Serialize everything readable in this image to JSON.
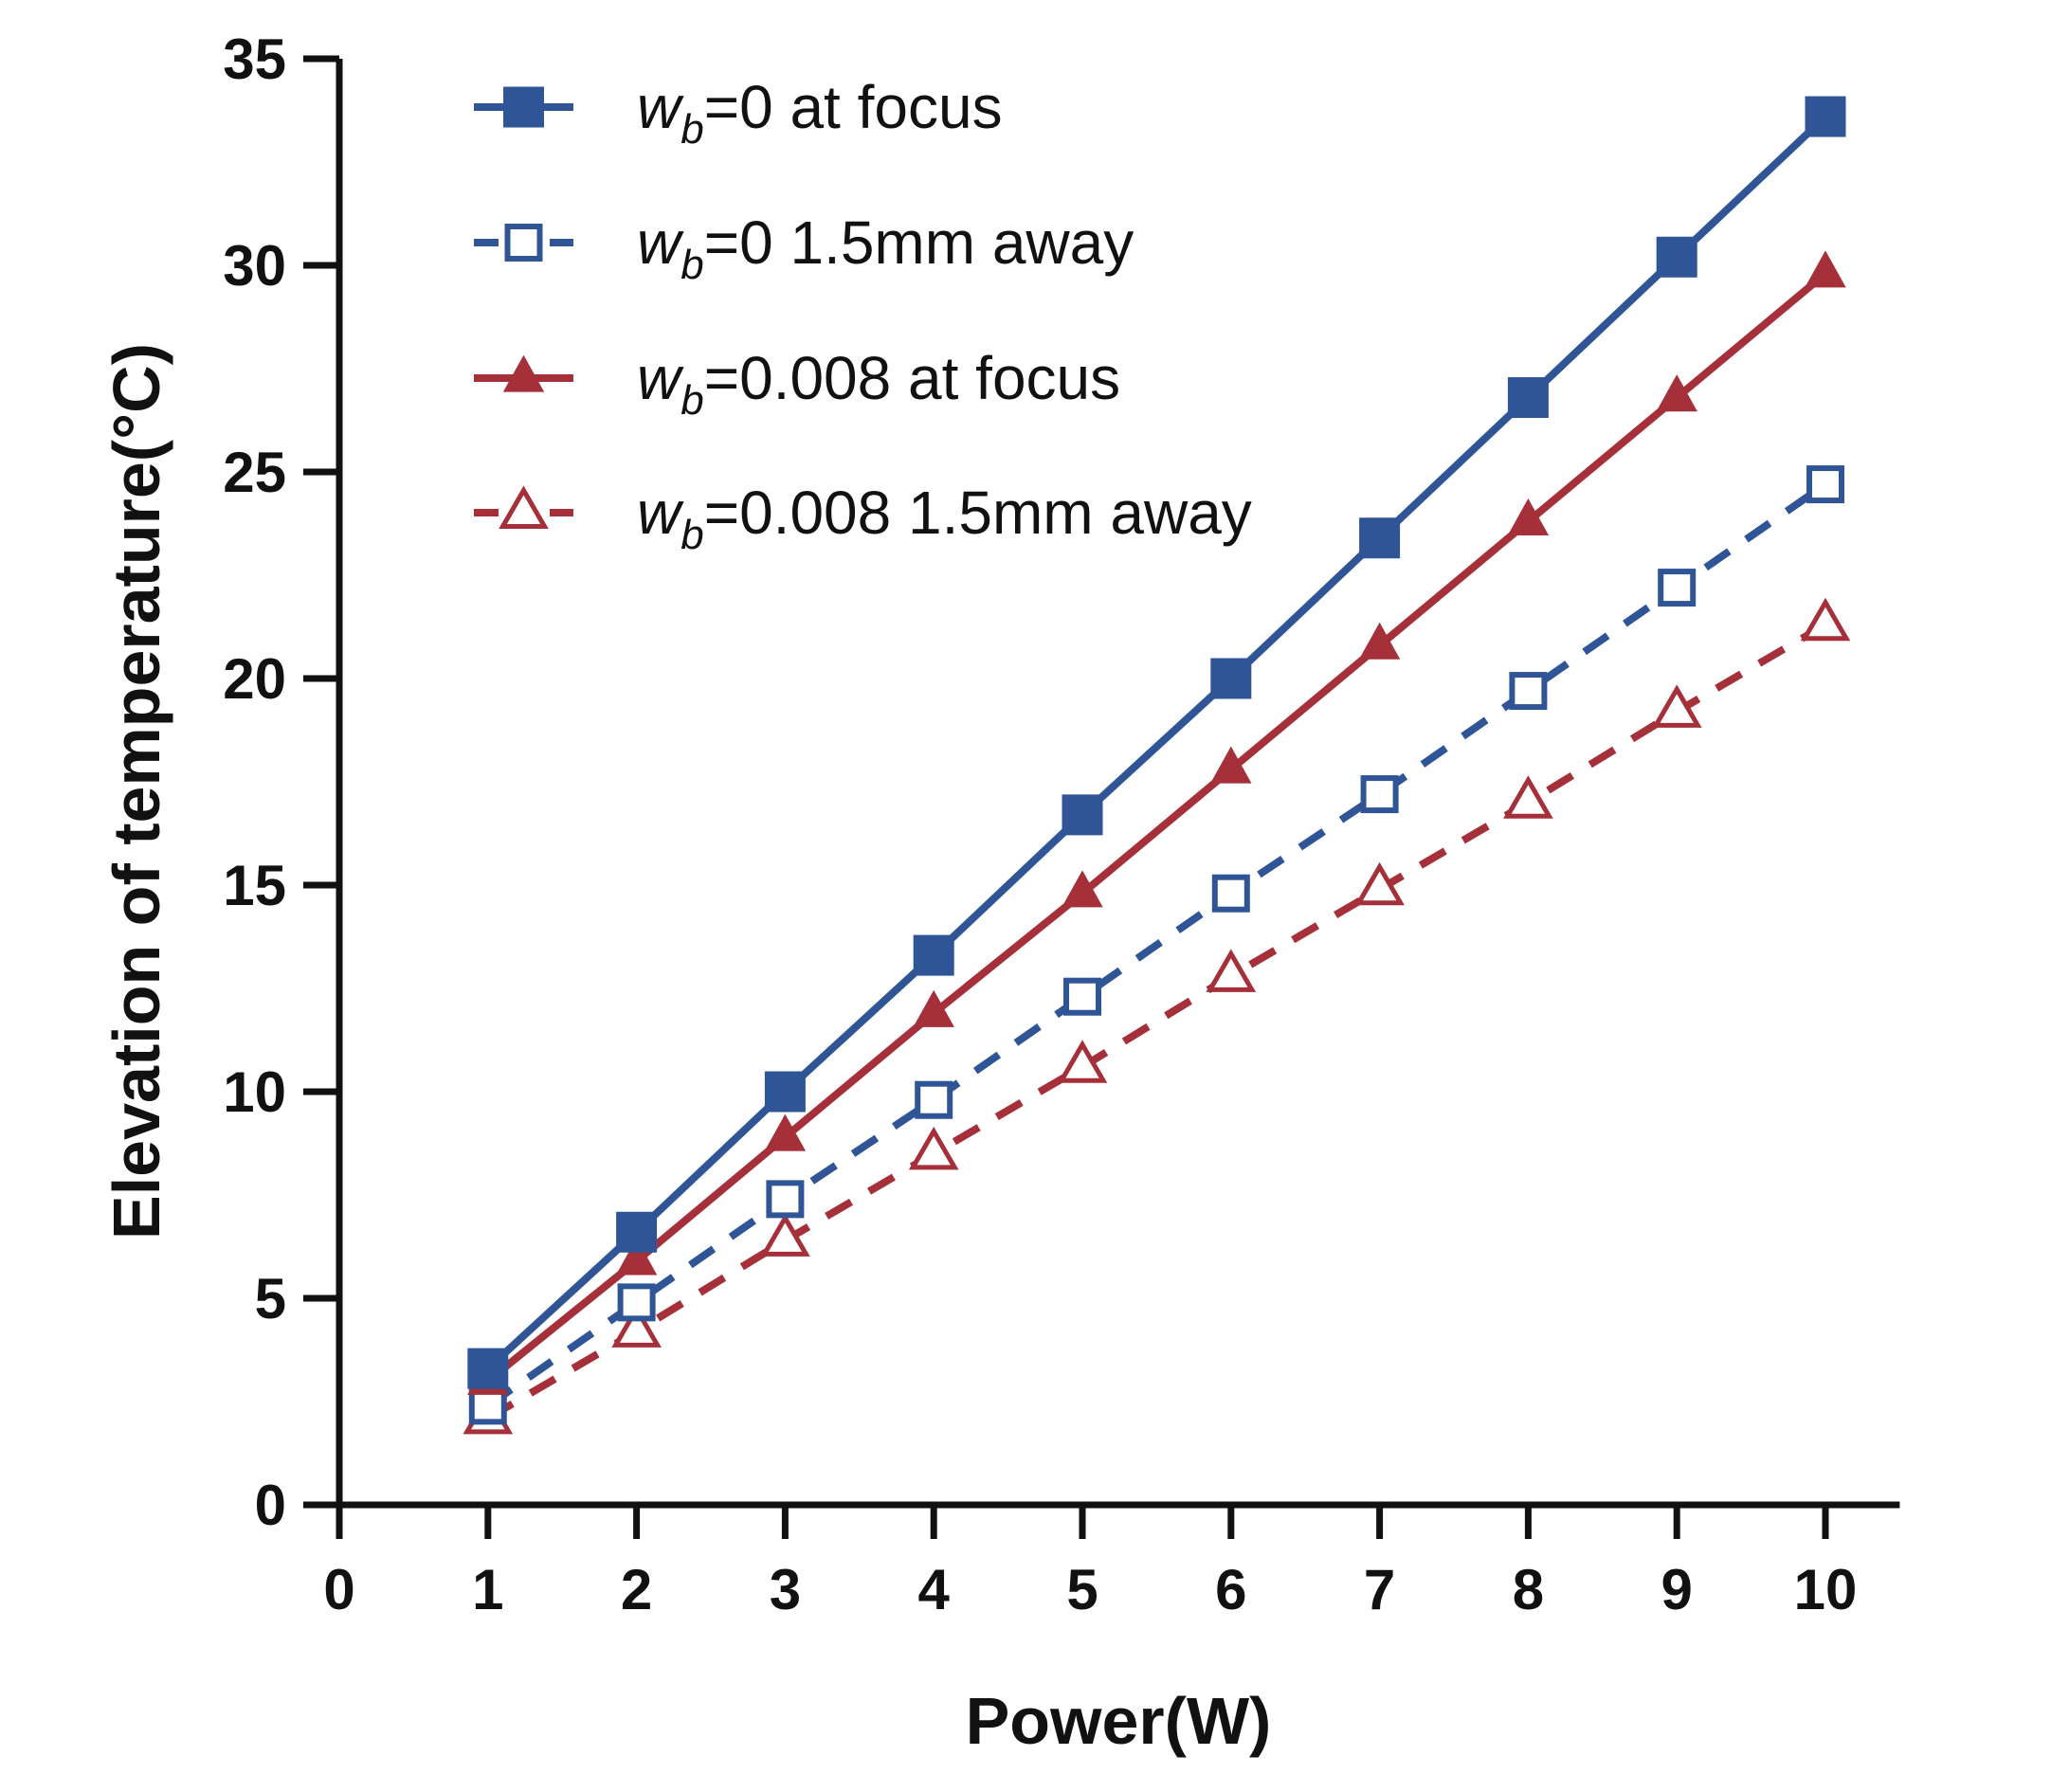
{
  "chart_data": {
    "type": "line",
    "title": "",
    "xlabel": "Power(W)",
    "ylabel": "Elevation of temperature(°C)",
    "xlim": [
      0,
      10.5
    ],
    "ylim": [
      0,
      35
    ],
    "xticks": [
      0,
      1,
      2,
      3,
      4,
      5,
      6,
      7,
      8,
      9,
      10
    ],
    "yticks": [
      0,
      5,
      10,
      15,
      20,
      25,
      30,
      35
    ],
    "grid": false,
    "legend_position": "top-left",
    "x": [
      1,
      2,
      3,
      4,
      5,
      6,
      7,
      8,
      9,
      10
    ],
    "series": [
      {
        "name": "wb=0 at focus",
        "label_prefix": "w",
        "label_sub": "b",
        "label_rest": "=0 at focus",
        "color": "#2F5597",
        "marker": "square-filled",
        "dashed": false,
        "values": [
          3.3,
          6.6,
          10.0,
          13.3,
          16.7,
          20.0,
          23.4,
          26.8,
          30.2,
          33.6
        ]
      },
      {
        "name": "wb=0 1.5mm away",
        "label_prefix": "w",
        "label_sub": "b",
        "label_rest": "=0 1.5mm away",
        "color": "#2F5597",
        "marker": "square-open",
        "dashed": true,
        "values": [
          2.4,
          4.9,
          7.4,
          9.8,
          12.3,
          14.8,
          17.2,
          19.7,
          22.2,
          24.7
        ]
      },
      {
        "name": "wb=0.008 at focus",
        "label_prefix": "w",
        "label_sub": "b",
        "label_rest": "=0.008 at focus",
        "color": "#A5303A",
        "marker": "triangle-filled",
        "dashed": false,
        "values": [
          3.0,
          5.9,
          8.9,
          11.9,
          14.8,
          17.8,
          20.8,
          23.8,
          26.8,
          29.8
        ]
      },
      {
        "name": "wb=0.008 1.5mm away",
        "label_prefix": "w",
        "label_sub": "b",
        "label_rest": "=0.008 1.5mm away",
        "color": "#A5303A",
        "marker": "triangle-open",
        "dashed": true,
        "values": [
          2.1,
          4.2,
          6.4,
          8.5,
          10.6,
          12.8,
          14.9,
          17.0,
          19.2,
          21.3
        ]
      }
    ]
  }
}
